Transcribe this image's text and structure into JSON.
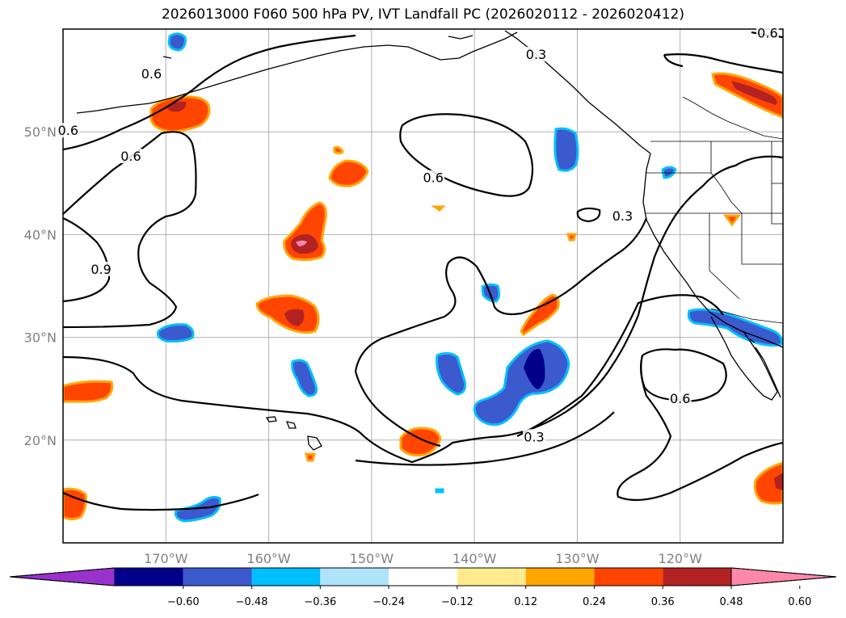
{
  "title": "2026013000 F060 500 hPa PV, IVT Landfall PC (2026020112 - 2026020412)",
  "map": {
    "lon_range": [
      -180,
      -110
    ],
    "lat_range": [
      10,
      60
    ],
    "lon_ticks": [
      {
        "value": -170,
        "label": "170°W"
      },
      {
        "value": -160,
        "label": "160°W"
      },
      {
        "value": -150,
        "label": "150°W"
      },
      {
        "value": -140,
        "label": "140°W"
      },
      {
        "value": -130,
        "label": "130°W"
      },
      {
        "value": -120,
        "label": "120°W"
      }
    ],
    "lat_ticks": [
      {
        "value": 20,
        "label": "20°N"
      },
      {
        "value": 30,
        "label": "30°N"
      },
      {
        "value": 40,
        "label": "40°N"
      },
      {
        "value": 50,
        "label": "50°N"
      }
    ],
    "grid": true,
    "tick_color": "#808080"
  },
  "contour_labels": [
    {
      "lon": -171.4,
      "lat": 55.5,
      "text": "0.6"
    },
    {
      "lon": -134.0,
      "lat": 57.4,
      "text": "0.3"
    },
    {
      "lon": -111.5,
      "lat": 59.5,
      "text": "0.6"
    },
    {
      "lon": -179.5,
      "lat": 50.0,
      "text": "0.6"
    },
    {
      "lon": -173.4,
      "lat": 47.5,
      "text": "0.6"
    },
    {
      "lon": -176.3,
      "lat": 36.5,
      "text": "0.9"
    },
    {
      "lon": -144.0,
      "lat": 45.4,
      "text": "0.6"
    },
    {
      "lon": -125.6,
      "lat": 41.7,
      "text": "0.3"
    },
    {
      "lon": -120.0,
      "lat": 23.9,
      "text": "0.6"
    },
    {
      "lon": -134.2,
      "lat": 20.2,
      "text": "0.3"
    }
  ],
  "colorbar": {
    "colors": [
      "#9932cc",
      "#00008b",
      "#3a5acd",
      "#00bfff",
      "#aee3fa",
      "#ffffff",
      "#ffeb8e",
      "#ffa500",
      "#ff4500",
      "#b22222",
      "#ff88aa"
    ],
    "labels": [
      "-0.60",
      "-0.48",
      "-0.36",
      "-0.24",
      "-0.12",
      "0.12",
      "0.24",
      "0.36",
      "0.48",
      "0.60"
    ]
  },
  "colors": {
    "negative_main": "#3a5acd",
    "negative_edge": "#00bfff",
    "negative_strong": "#00008b",
    "positive_main": "#ff4500",
    "positive_edge": "#ffa500",
    "positive_strong": "#b22222",
    "positive_extreme": "#ff88aa"
  }
}
